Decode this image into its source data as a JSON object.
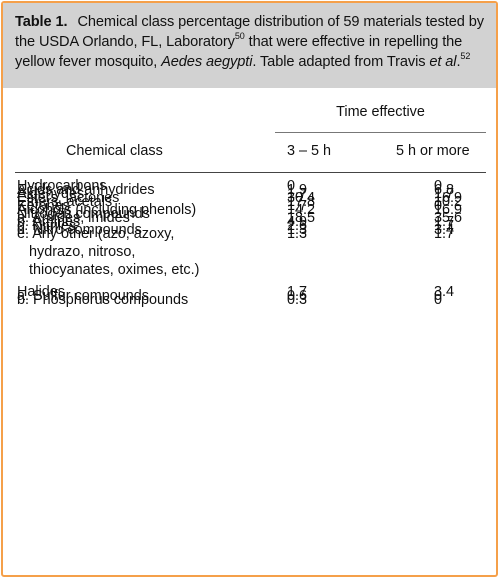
{
  "caption": {
    "label": "Table 1.",
    "text_a": "Chemical class percentage distribution of 59 materials tested by the USDA Orlando, FL, Laboratory",
    "sup_a": "50",
    "text_b": " that were effective in repelling the yellow fever mosquito, ",
    "species": "Aedes aegypti",
    "text_c": ". Table adapted from Travis ",
    "etal": "et al",
    "text_d": ".",
    "sup_b": "52"
  },
  "header": {
    "group": "Time effective",
    "col0": "Chemical class",
    "col1": "3 – 5 h",
    "col2": "5 h or more"
  },
  "rows": [
    {
      "name": "Hydrocarbons",
      "v1": "0",
      "v2": "0"
    },
    {
      "name": "Acids and anhydrides",
      "v1": "1.9",
      "v2": "6.8"
    },
    {
      "name": "Aldehydes",
      "v1": "1.7",
      "v2": "1.7"
    },
    {
      "name": "Esters, lactones",
      "v1": "30.4",
      "v2": "16.9"
    },
    {
      "name": "Ethers, acetals",
      "v1": "17.8",
      "v2": "10.2"
    },
    {
      "name": "Ketones",
      "v1": "1.7",
      "v2": "0"
    },
    {
      "name": "Alcohols (including phenols)",
      "v1": "14.2",
      "v2": "16.9"
    },
    {
      "name": "Nitrogen compounds",
      "v1": "",
      "v2": ""
    },
    {
      "name": "a. Amides, imides",
      "v1": "18.5",
      "v2": "35.6"
    },
    {
      "name": "b. Amines",
      "v1": "4.9",
      "v2": "1.7"
    },
    {
      "name": "c. Nitriles",
      "v1": "2.6",
      "v2": "1.7"
    },
    {
      "name": "d. Nitro compounds",
      "v1": "1.3",
      "v2": "3.4"
    },
    {
      "name": "e. Any other (azo, azoxy,",
      "name2": "hydrazo, nitroso,",
      "name3": "thiocyanates, oximes, etc.)",
      "v1": "1.3",
      "v2": "1.7"
    },
    {
      "name": "Halides",
      "v1": "1.7",
      "v2": "3.4"
    },
    {
      "name": "a. Sulfur compounds",
      "v1": "0.6",
      "v2": "0"
    },
    {
      "name": "b. Phosphorus compounds",
      "v1": "0.3",
      "v2": "0"
    }
  ]
}
